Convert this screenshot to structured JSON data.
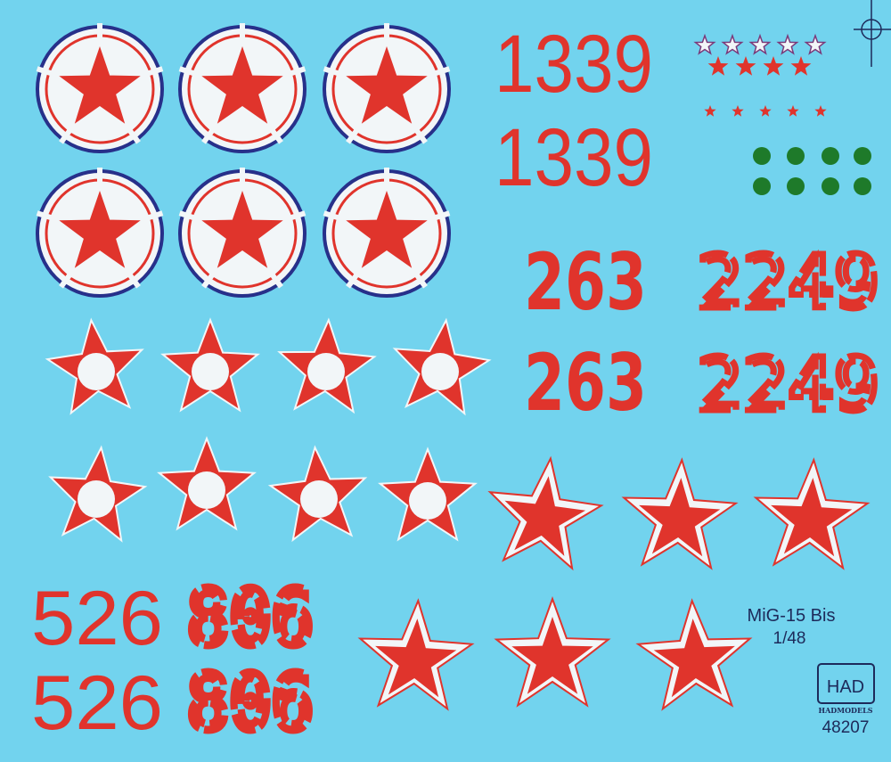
{
  "sheet": {
    "title": "MiG-15 Bis",
    "scale": "1/48",
    "brand_logo": "HAD",
    "brand_name": "HADMODELS",
    "catalog_number": "48207"
  },
  "numbers": {
    "tail_1": "1339",
    "tail_2": "1339",
    "bold_1": "263",
    "bold_2": "263",
    "stencil_1": "2249",
    "stencil_2": "2249",
    "bottom_left_1": "526",
    "bottom_left_2": "526",
    "bottom_right_1": "806",
    "bottom_right_2": "806"
  },
  "colors": {
    "background": "#72d3ee",
    "red": "#e0342c",
    "white": "#f2f6f8",
    "blue_ring": "#27308a",
    "green": "#1e7a2a",
    "text": "#1d2a5a"
  },
  "marking_icons": [
    "roundel-star-icon",
    "star-white-center-icon",
    "star-outlined-icon",
    "kill-star-icon",
    "green-dot-icon",
    "registration-crosshair-icon"
  ]
}
